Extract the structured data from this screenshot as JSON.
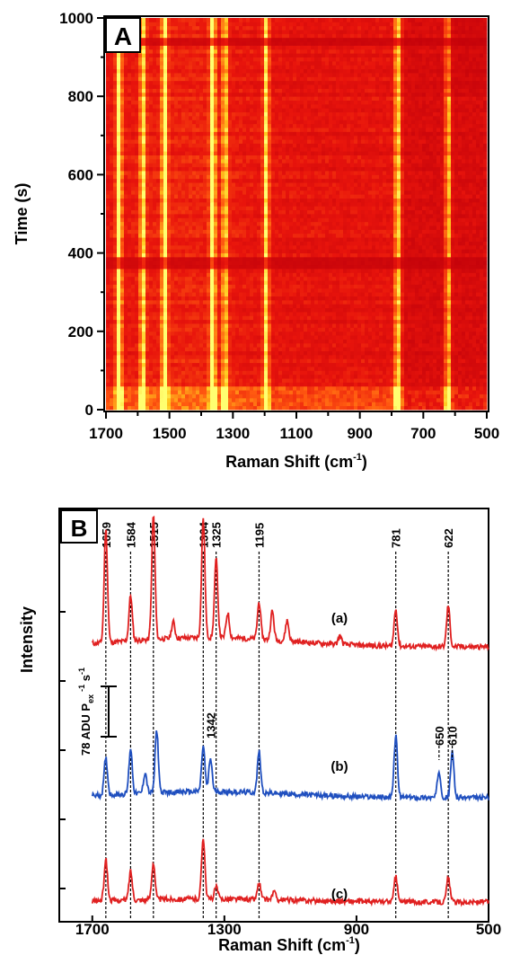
{
  "chart_data": [
    {
      "type": "heatmap",
      "panel_label": "A",
      "xlabel": "Raman Shift (cm",
      "xlabel_sup": "-1",
      "xlabel_close": ")",
      "ylabel": "Time (s)",
      "xlim": [
        1700,
        500
      ],
      "ylim": [
        0,
        1000
      ],
      "x_ticks": [
        "1700",
        "1500",
        "1300",
        "1100",
        "900",
        "700",
        "500"
      ],
      "y_ticks": [
        "0",
        "200",
        "400",
        "600",
        "800",
        "1000"
      ],
      "colormap": [
        "#c0000a",
        "#e8140c",
        "#ff5a10",
        "#ffc81e",
        "#ffff70"
      ],
      "bright_bands": [
        {
          "x": 1659,
          "intensity": 0.95
        },
        {
          "x": 1584,
          "intensity": 0.7
        },
        {
          "x": 1515,
          "intensity": 0.9
        },
        {
          "x": 1364,
          "intensity": 0.95
        },
        {
          "x": 1325,
          "intensity": 0.6
        },
        {
          "x": 1195,
          "intensity": 0.75
        },
        {
          "x": 781,
          "intensity": 0.7
        },
        {
          "x": 622,
          "intensity": 0.65
        }
      ],
      "bright_time_band": [
        0,
        55
      ],
      "dark_time_bands": [
        370,
        380,
        940
      ]
    },
    {
      "type": "line",
      "panel_label": "B",
      "xlabel": "Raman Shift (cm",
      "xlabel_sup": "-1",
      "xlabel_close": ")",
      "ylabel": "Intensity",
      "xlim": [
        1800,
        500
      ],
      "x_ticks": [
        "1700",
        "1300",
        "900",
        "500"
      ],
      "scale_bar_label": "78 ADU P",
      "scale_bar_sub": "ex",
      "scale_bar_sup1": "-1",
      "scale_bar_s": " s",
      "scale_bar_sup2": "-1",
      "peak_lines": [
        "1659",
        "1584",
        "1515",
        "1364",
        "1325",
        "1195",
        "781",
        "622"
      ],
      "extra_peak_labels": [
        "1342",
        "650",
        "610"
      ],
      "series": [
        {
          "name": "(a)",
          "color": "#e02020",
          "baseline": 0.18,
          "peaks": [
            [
              1659,
              0.55
            ],
            [
              1584,
              0.22
            ],
            [
              1515,
              0.6
            ],
            [
              1455,
              0.08
            ],
            [
              1364,
              0.58
            ],
            [
              1325,
              0.38
            ],
            [
              1290,
              0.12
            ],
            [
              1195,
              0.18
            ],
            [
              1155,
              0.14
            ],
            [
              1110,
              0.1
            ],
            [
              950,
              0.04
            ],
            [
              781,
              0.18
            ],
            [
              622,
              0.2
            ]
          ]
        },
        {
          "name": "(b)",
          "color": "#1f4fbf",
          "baseline": 0.12,
          "peaks": [
            [
              1659,
              0.18
            ],
            [
              1584,
              0.22
            ],
            [
              1540,
              0.1
            ],
            [
              1505,
              0.3
            ],
            [
              1364,
              0.22
            ],
            [
              1342,
              0.16
            ],
            [
              1195,
              0.2
            ],
            [
              781,
              0.3
            ],
            [
              650,
              0.13
            ],
            [
              610,
              0.22
            ]
          ]
        },
        {
          "name": "(c)",
          "color": "#e02020",
          "baseline": 0.06,
          "peaks": [
            [
              1659,
              0.2
            ],
            [
              1584,
              0.14
            ],
            [
              1515,
              0.18
            ],
            [
              1364,
              0.3
            ],
            [
              1325,
              0.06
            ],
            [
              1195,
              0.08
            ],
            [
              1150,
              0.04
            ],
            [
              781,
              0.12
            ],
            [
              622,
              0.12
            ]
          ]
        }
      ]
    }
  ]
}
